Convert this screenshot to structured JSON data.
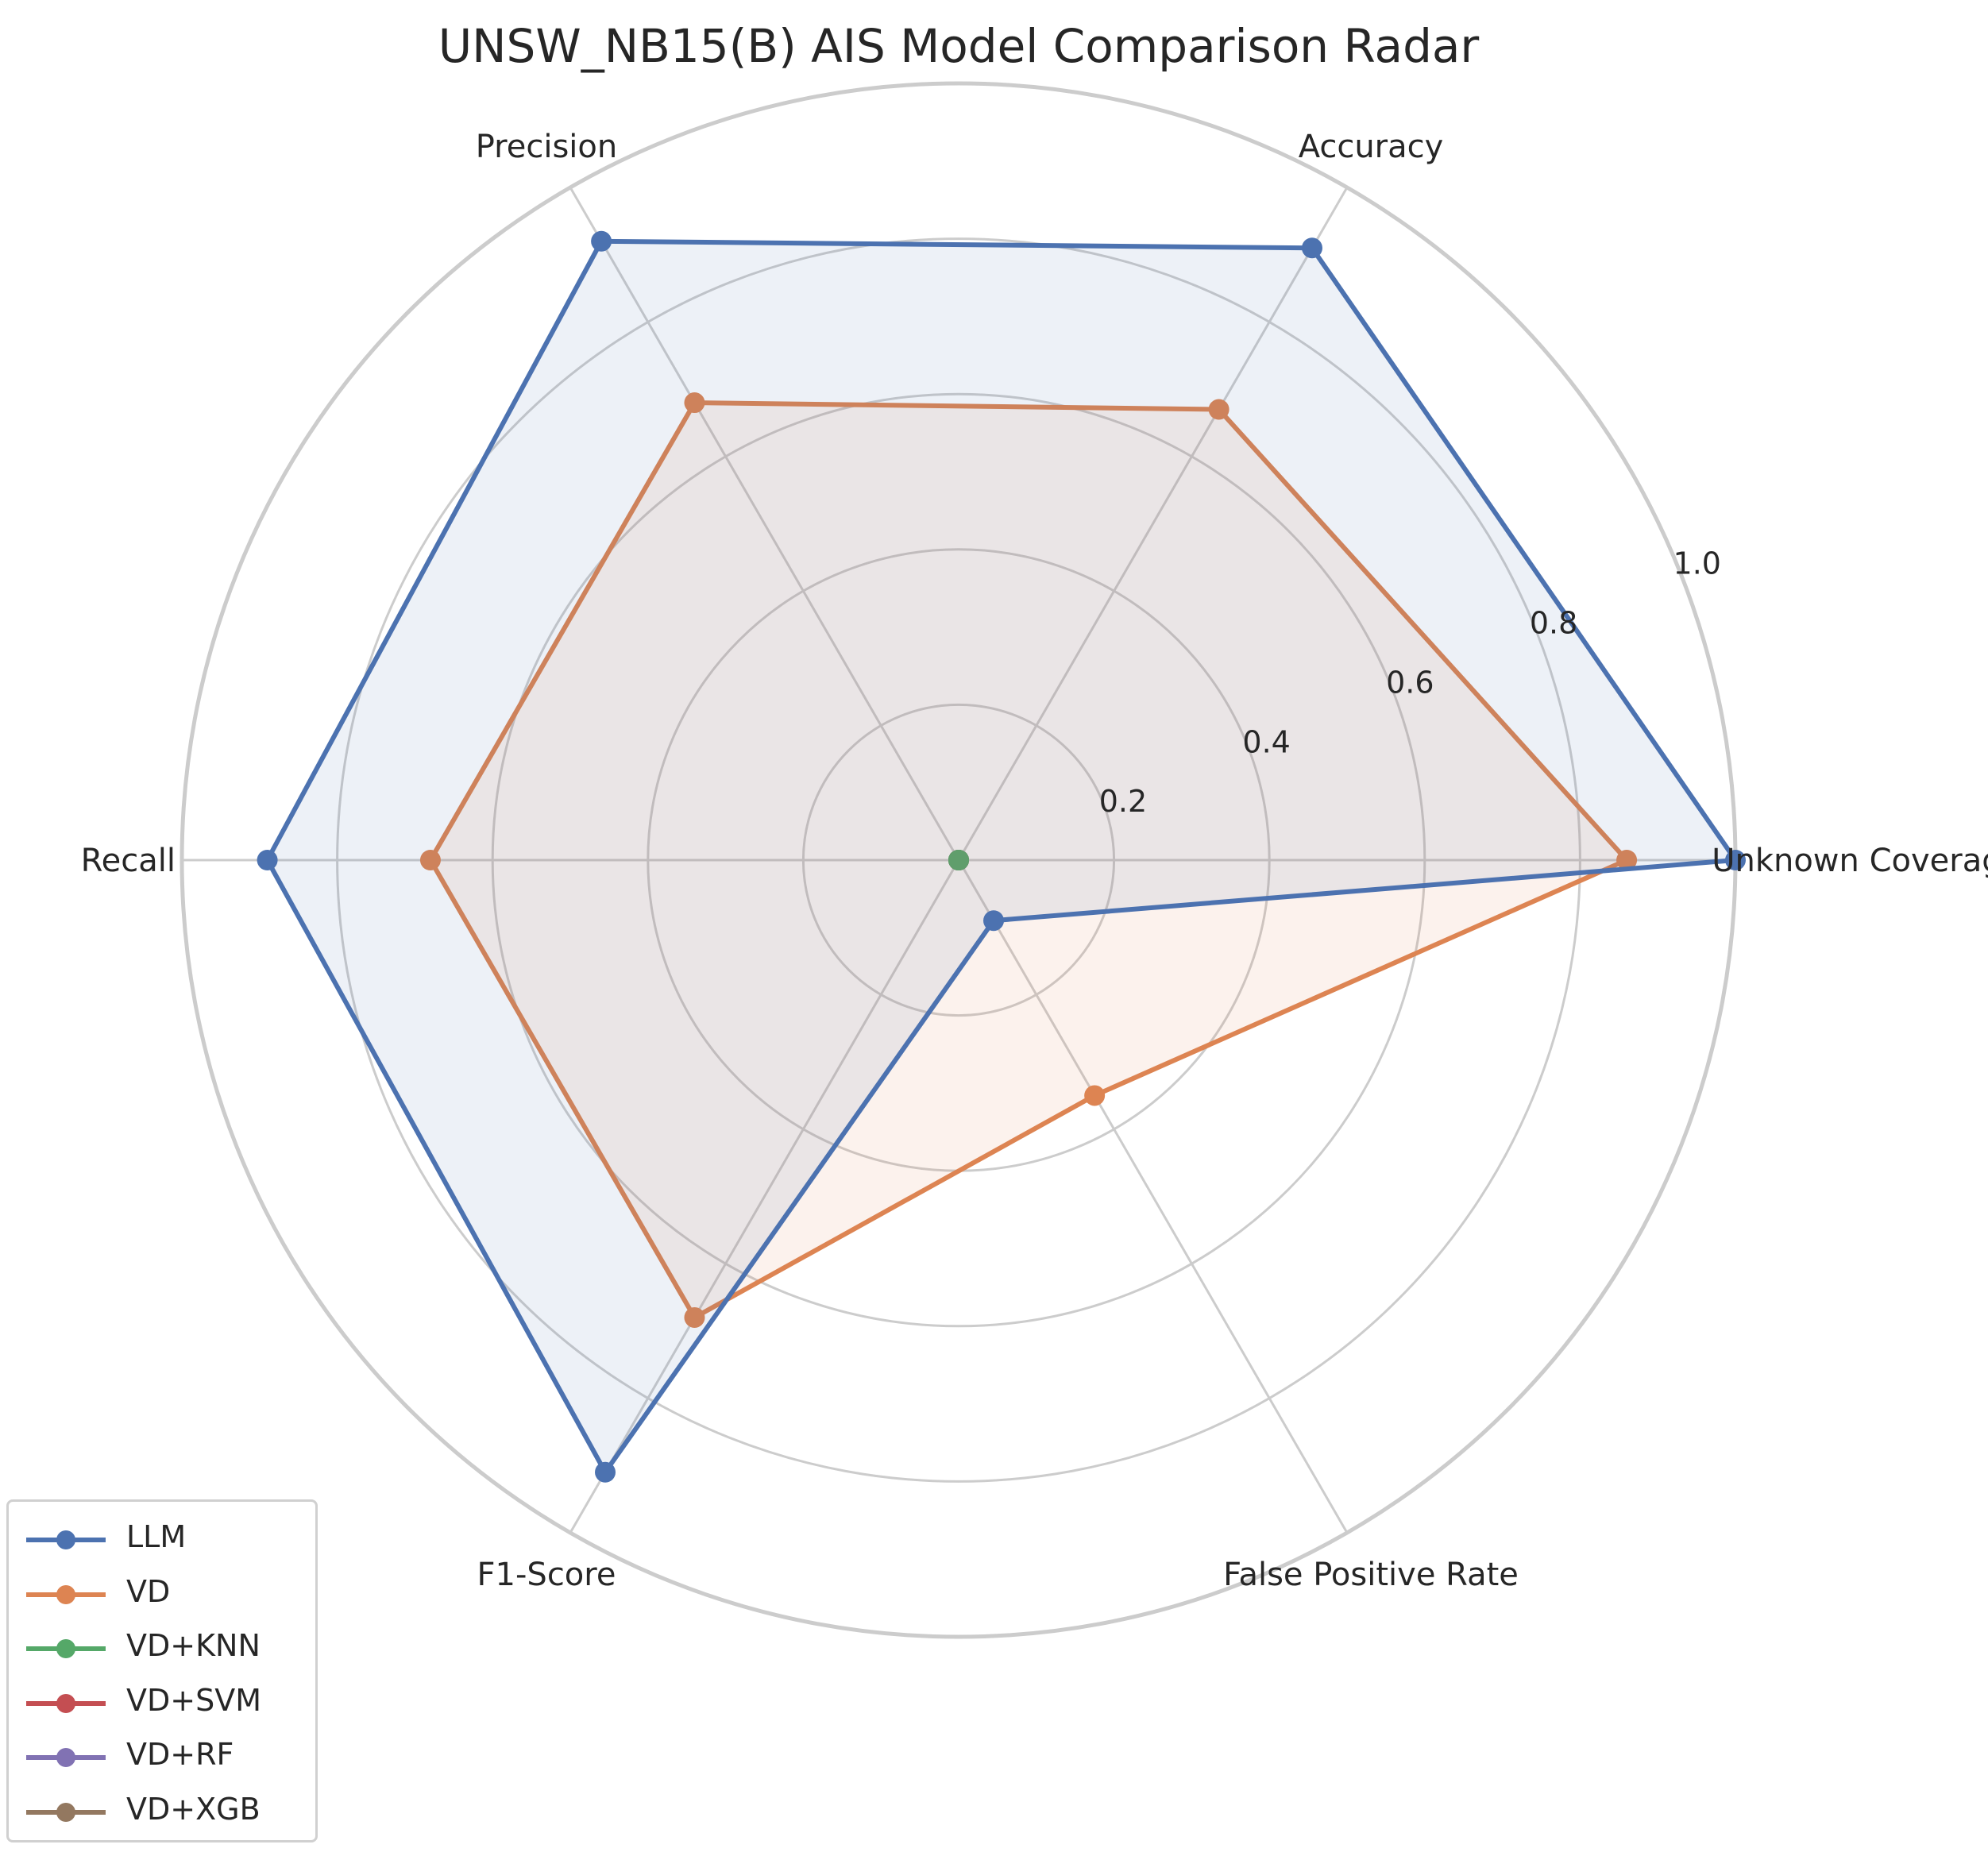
{
  "chart_data": {
    "type": "radar",
    "title": "UNSW_NB15(B) AIS Model Comparison Radar",
    "axes": [
      "Unknown Coverage",
      "Accuracy",
      "Precision",
      "Recall",
      "F1-Score",
      "False Positive Rate"
    ],
    "radial_ticks": [
      "0.2",
      "0.4",
      "0.6",
      "0.8",
      "1.0"
    ],
    "rlim": [
      0,
      1.0
    ],
    "grid": true,
    "legend_position": "lower-left",
    "series": [
      {
        "name": "LLM",
        "color": "#4c72b0",
        "values": [
          1.0,
          0.91,
          0.92,
          0.89,
          0.91,
          0.09
        ]
      },
      {
        "name": "VD",
        "color": "#dd8452",
        "values": [
          0.86,
          0.67,
          0.68,
          0.68,
          0.68,
          0.35
        ]
      },
      {
        "name": "VD+KNN",
        "color": "#55a868",
        "values": [
          0,
          0,
          0,
          0,
          0,
          0
        ]
      },
      {
        "name": "VD+SVM",
        "color": "#c44e52",
        "values": [
          0,
          0,
          0,
          0,
          0,
          0
        ]
      },
      {
        "name": "VD+RF",
        "color": "#8172b3",
        "values": [
          0,
          0,
          0,
          0,
          0,
          0
        ]
      },
      {
        "name": "VD+XGB",
        "color": "#937860",
        "values": [
          0,
          0,
          0,
          0,
          0,
          0
        ]
      }
    ]
  }
}
